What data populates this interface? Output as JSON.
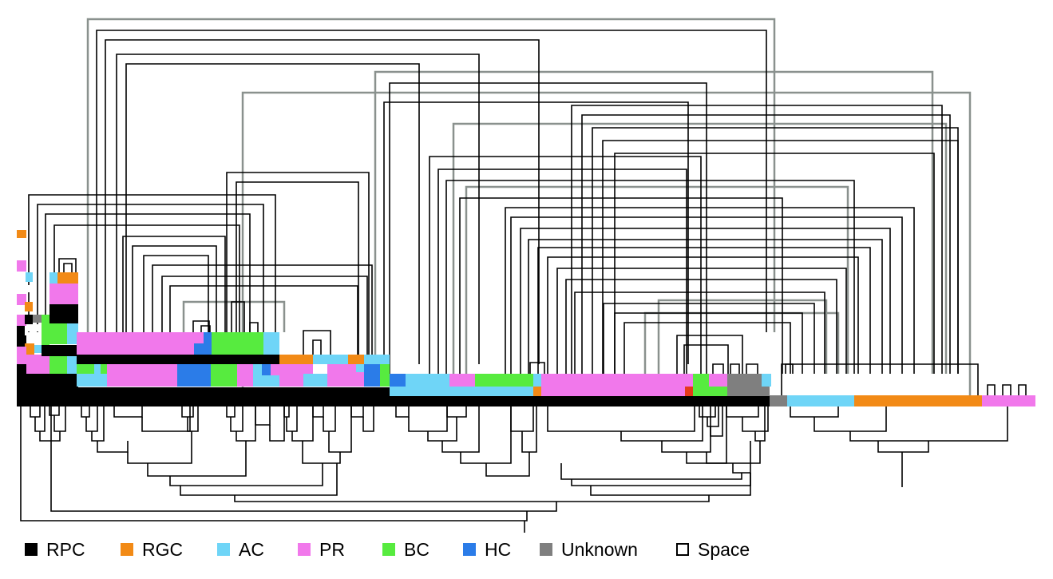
{
  "figure": {
    "type": "lineage tree (cell-type composition bars with connector lines and dendrogram)",
    "legend": [
      {
        "label": "RPC",
        "color": "#000000"
      },
      {
        "label": "RGC",
        "color": "#F28A16"
      },
      {
        "label": "AC",
        "color": "#6FD5F7"
      },
      {
        "label": "PR",
        "color": "#F178EB"
      },
      {
        "label": "BC",
        "color": "#57EB3F"
      },
      {
        "label": "HC",
        "color": "#2B7CE8"
      },
      {
        "label": "Unknown",
        "color": "#7F7F7F"
      },
      {
        "label": "Space",
        "color": "#FFFFFF"
      }
    ]
  }
}
